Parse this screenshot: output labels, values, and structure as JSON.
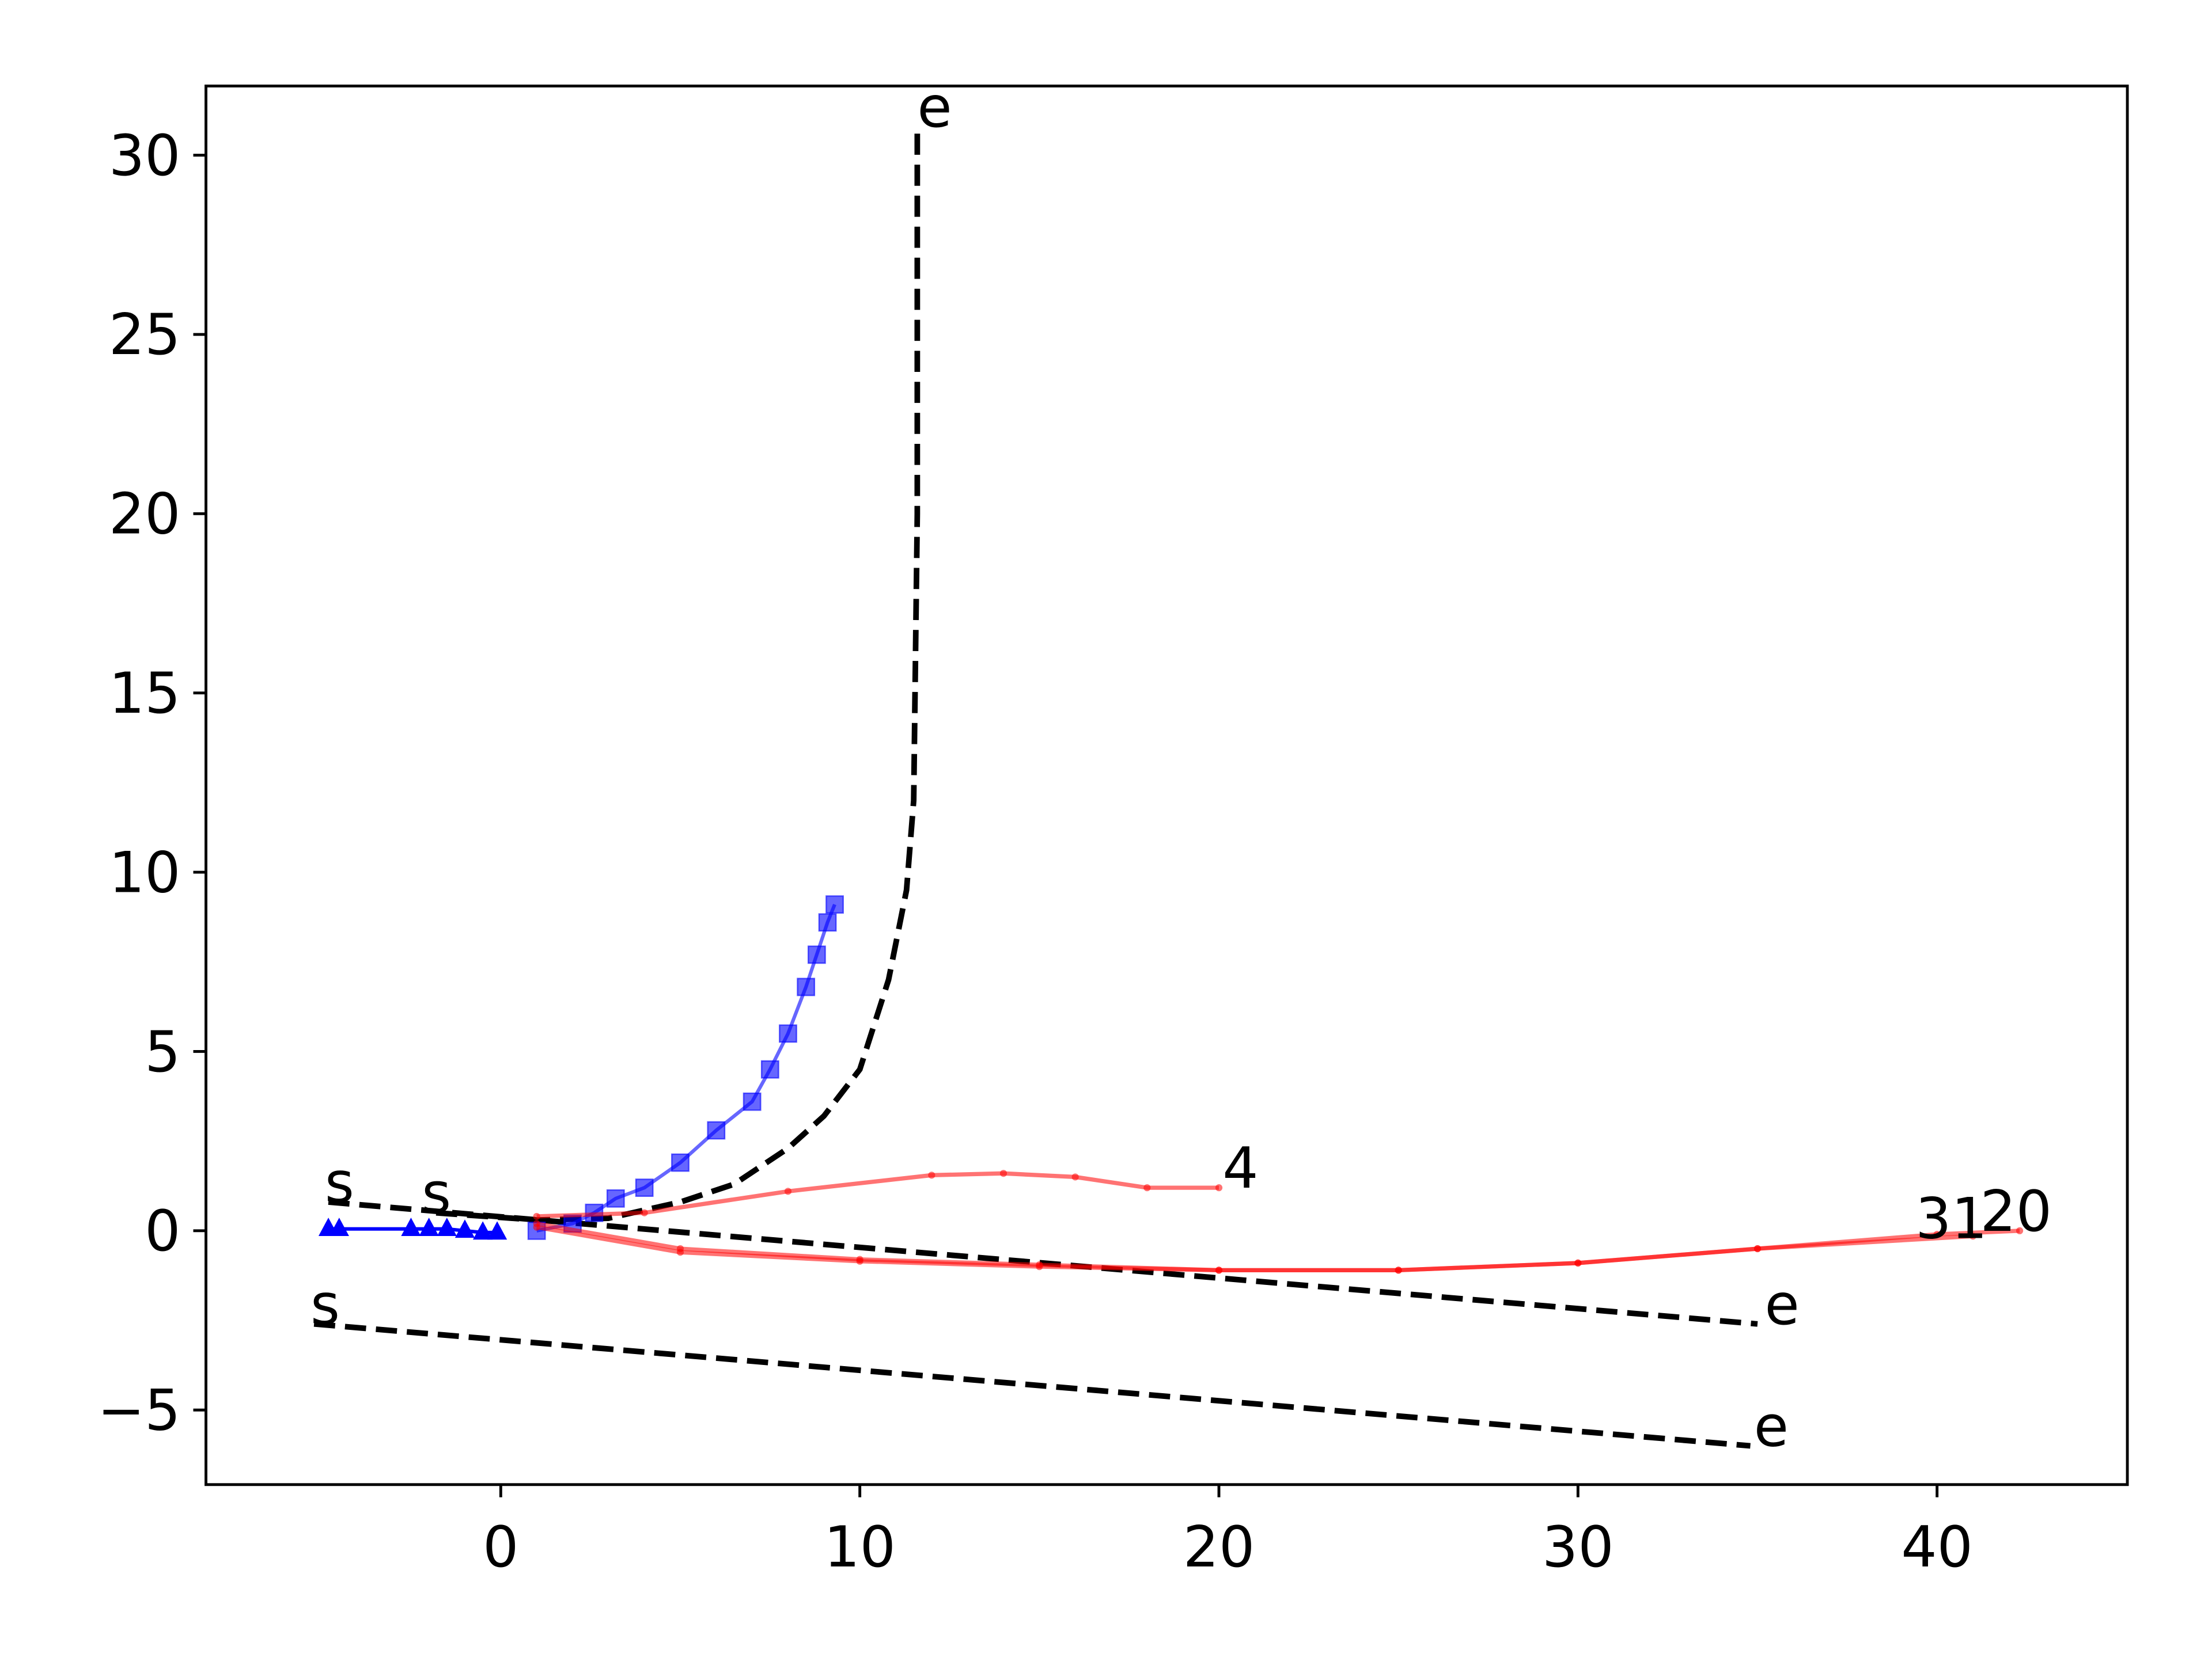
{
  "chart_data": {
    "type": "line",
    "xlim": [
      -8.21,
      45.3
    ],
    "ylim": [
      -7.08,
      31.93
    ],
    "xticks": [
      0,
      10,
      20,
      30,
      40
    ],
    "yticks": [
      {
        "value": -5,
        "label": "−5"
      },
      0,
      5,
      10,
      15,
      20,
      25,
      30
    ],
    "series": [
      {
        "color": "#000000",
        "dash": true,
        "marker": "none",
        "alpha": 1,
        "x": [
          -4.8,
          35
        ],
        "values": [
          0.8,
          -2.6
        ]
      },
      {
        "color": "#000000",
        "dash": true,
        "marker": "none",
        "alpha": 1,
        "x": [
          -5.2,
          34.8
        ],
        "values": [
          -2.6,
          -6
        ]
      },
      {
        "color": "#000000",
        "dash": true,
        "marker": "none",
        "alpha": 1,
        "x": [
          -1.8,
          1,
          3,
          5,
          6.5,
          8,
          9,
          10,
          10.8,
          11.3,
          11.5,
          11.6,
          11.6
        ],
        "values": [
          0.5,
          0.3,
          0.35,
          0.8,
          1.3,
          2.3,
          3.2,
          4.5,
          7,
          9.5,
          12,
          20,
          30.8
        ]
      },
      {
        "color": "#0000ff",
        "dash": false,
        "marker": "square",
        "alpha": 0.6,
        "x": [
          1,
          2,
          2.6,
          3.2,
          4,
          5,
          6,
          7,
          7.5,
          8,
          8.5,
          8.8,
          9.1,
          9.3
        ],
        "values": [
          0,
          0.2,
          0.5,
          0.9,
          1.2,
          1.9,
          2.8,
          3.6,
          4.5,
          5.5,
          6.8,
          7.7,
          8.6,
          9.1
        ]
      },
      {
        "color": "#0000ff",
        "dash": false,
        "marker": "triangle",
        "alpha": 1,
        "x": [
          -4.8,
          -4.5,
          -2.5,
          -2,
          -1.5,
          -1,
          -0.5,
          -0.1
        ],
        "values": [
          0.05,
          0.05,
          0.05,
          0.05,
          0.05,
          0,
          -0.05,
          -0.05
        ]
      },
      {
        "color": "#ff0000",
        "dash": false,
        "marker": "dot",
        "alpha": 0.55,
        "x": [
          1,
          4,
          8,
          12,
          14,
          16,
          18,
          20
        ],
        "values": [
          0.4,
          0.5,
          1.1,
          1.55,
          1.6,
          1.5,
          1.2,
          1.2
        ]
      },
      {
        "color": "#ff0000",
        "dash": false,
        "marker": "dot",
        "alpha": 0.55,
        "x": [
          1,
          5,
          10,
          15,
          20,
          25,
          30,
          35,
          40,
          42.3
        ],
        "values": [
          0.2,
          -0.5,
          -0.8,
          -0.95,
          -1.1,
          -1.1,
          -0.9,
          -0.5,
          -0.1,
          0
        ]
      },
      {
        "color": "#ff0000",
        "dash": false,
        "marker": "dot",
        "alpha": 0.55,
        "x": [
          1,
          5,
          10,
          15,
          20,
          25,
          30,
          35,
          41
        ],
        "values": [
          0.1,
          -0.6,
          -0.85,
          -1,
          -1.1,
          -1.1,
          -0.9,
          -0.5,
          -0.15
        ]
      }
    ],
    "annotations": [
      {
        "text": "s",
        "x": -4.9,
        "y": 0.8
      },
      {
        "text": "s",
        "x": -2.2,
        "y": 0.5
      },
      {
        "text": "s",
        "x": -5.3,
        "y": -2.6
      },
      {
        "text": "e",
        "x": 11.6,
        "y": 30.8
      },
      {
        "text": "e",
        "x": 35.2,
        "y": -2.6
      },
      {
        "text": "e",
        "x": 34.9,
        "y": -6
      },
      {
        "text": "4",
        "x": 20.1,
        "y": 1.2
      },
      {
        "text": "31",
        "x": 39.4,
        "y": -0.2
      },
      {
        "text": "20",
        "x": 41.2,
        "y": 0
      }
    ]
  }
}
